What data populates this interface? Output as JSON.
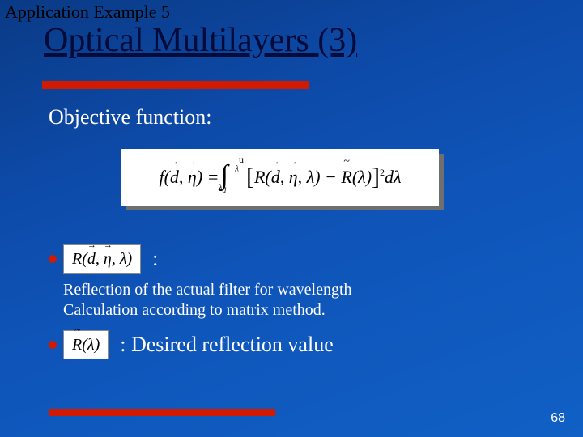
{
  "slide": {
    "pre_title": "Application Example 5",
    "title": "Optical Multilayers (3)",
    "objective_label": "Objective function:",
    "page_number": "68"
  },
  "formula": {
    "f": "f",
    "d": "d",
    "eta": "η",
    "eq": "=",
    "lambda_d": "λ",
    "lambda_u": "λ",
    "R": "R",
    "Rt": "R",
    "lam": "λ",
    "minus": "−",
    "dlam": "dλ",
    "sub_d": "d",
    "sup_u": "u",
    "sq": "2"
  },
  "bullets": {
    "r_actual": "R",
    "r_actual_args_d": "d",
    "r_actual_args_eta": "η",
    "r_actual_args_lam": "λ",
    "colon1": ":",
    "desc_line1": "Reflection of the actual filter for wavelength",
    "desc_line2": "Calculation according to matrix method.",
    "r_tilde": "R",
    "r_tilde_arg": "λ",
    "colon2": ":",
    "desired": " Desired reflection value"
  },
  "style": {
    "bg_gradient_from": "#0a3a85",
    "bg_gradient_to": "#1060c5",
    "accent_color": "#d11a00",
    "title_color": "#020b3a",
    "text_color": "#ffffff",
    "box_bg": "#ffffff",
    "box_text": "#000000",
    "shadow_color": "#6f6f6f",
    "title_fontsize": 42,
    "pretitle_fontsize": 22,
    "body_fontsize": 26,
    "desc_fontsize": 20,
    "page_fontsize": 16,
    "slide_width": 720,
    "slide_height": 540
  }
}
